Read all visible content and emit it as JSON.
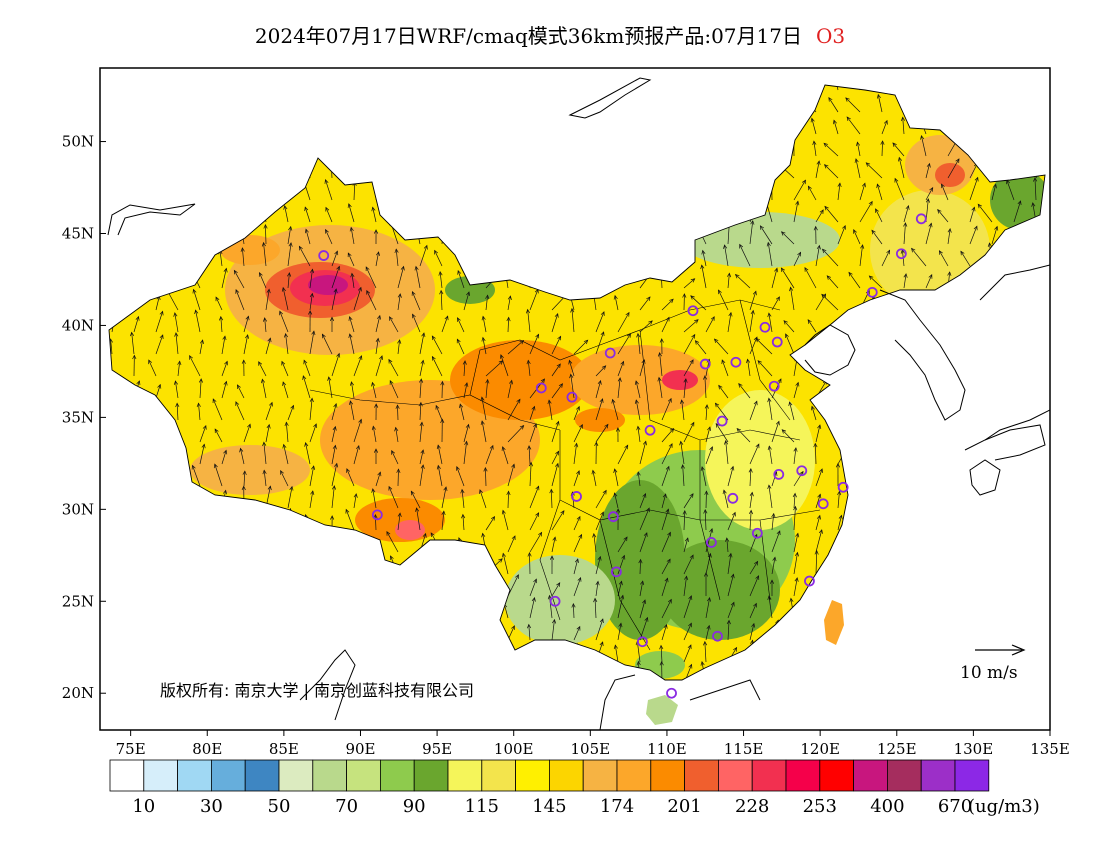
{
  "header": {
    "title": "2024年07月17日WRF/cmaq模式36km预报产品:07月17日",
    "species": "O3",
    "species_color": "#e02020"
  },
  "map": {
    "lon_range": [
      73,
      135
    ],
    "lat_range": [
      18,
      54
    ],
    "lon_ticks": [
      "75E",
      "80E",
      "85E",
      "90E",
      "95E",
      "100E",
      "105E",
      "110E",
      "115E",
      "120E",
      "125E",
      "130E",
      "135E"
    ],
    "lat_ticks": [
      "20N",
      "25N",
      "30N",
      "35N",
      "40N",
      "45N",
      "50N"
    ],
    "copyright": "版权所有: 南京大学 | 南京创蓝科技有限公司",
    "wind_scale_label": "10 m/s",
    "wind_scale_ms": 10
  },
  "colorbar": {
    "unit": "(ug/m3)",
    "labels": [
      "10",
      "30",
      "50",
      "70",
      "90",
      "115",
      "145",
      "174",
      "201",
      "228",
      "253",
      "400",
      "670"
    ],
    "colors": [
      "#ffffff",
      "#d6eefa",
      "#a0d8f3",
      "#66aedc",
      "#3e86c2",
      "#dcebc0",
      "#b9d98c",
      "#c6e37e",
      "#8ecb4d",
      "#6aa62e",
      "#f5f55a",
      "#f3e44c",
      "#fff000",
      "#fcd500",
      "#f6b343",
      "#fca72a",
      "#fb8b00",
      "#f05f2e",
      "#ff6464",
      "#f23050",
      "#f5004a",
      "#ff0000",
      "#c8167e",
      "#a52d5e",
      "#9c2fc8",
      "#8c28e6"
    ]
  },
  "stations": [
    {
      "lon": 87.6,
      "lat": 43.8
    },
    {
      "lon": 91.1,
      "lat": 29.7
    },
    {
      "lon": 101.8,
      "lat": 36.6
    },
    {
      "lon": 103.8,
      "lat": 36.1
    },
    {
      "lon": 106.3,
      "lat": 38.5
    },
    {
      "lon": 104.1,
      "lat": 30.7
    },
    {
      "lon": 106.5,
      "lat": 29.6
    },
    {
      "lon": 106.7,
      "lat": 26.6
    },
    {
      "lon": 102.7,
      "lat": 25.0
    },
    {
      "lon": 108.4,
      "lat": 22.8
    },
    {
      "lon": 110.3,
      "lat": 20.0
    },
    {
      "lon": 111.7,
      "lat": 40.8
    },
    {
      "lon": 112.5,
      "lat": 37.9
    },
    {
      "lon": 114.5,
      "lat": 38.0
    },
    {
      "lon": 116.4,
      "lat": 39.9
    },
    {
      "lon": 117.2,
      "lat": 39.1
    },
    {
      "lon": 117.0,
      "lat": 36.7
    },
    {
      "lon": 113.6,
      "lat": 34.8
    },
    {
      "lon": 108.9,
      "lat": 34.3
    },
    {
      "lon": 114.3,
      "lat": 30.6
    },
    {
      "lon": 112.9,
      "lat": 28.2
    },
    {
      "lon": 115.9,
      "lat": 28.7
    },
    {
      "lon": 117.3,
      "lat": 31.9
    },
    {
      "lon": 118.8,
      "lat": 32.1
    },
    {
      "lon": 121.5,
      "lat": 31.2
    },
    {
      "lon": 120.2,
      "lat": 30.3
    },
    {
      "lon": 119.3,
      "lat": 26.1
    },
    {
      "lon": 113.3,
      "lat": 23.1
    },
    {
      "lon": 123.4,
      "lat": 41.8
    },
    {
      "lon": 125.3,
      "lat": 43.9
    },
    {
      "lon": 126.6,
      "lat": 45.8
    }
  ]
}
